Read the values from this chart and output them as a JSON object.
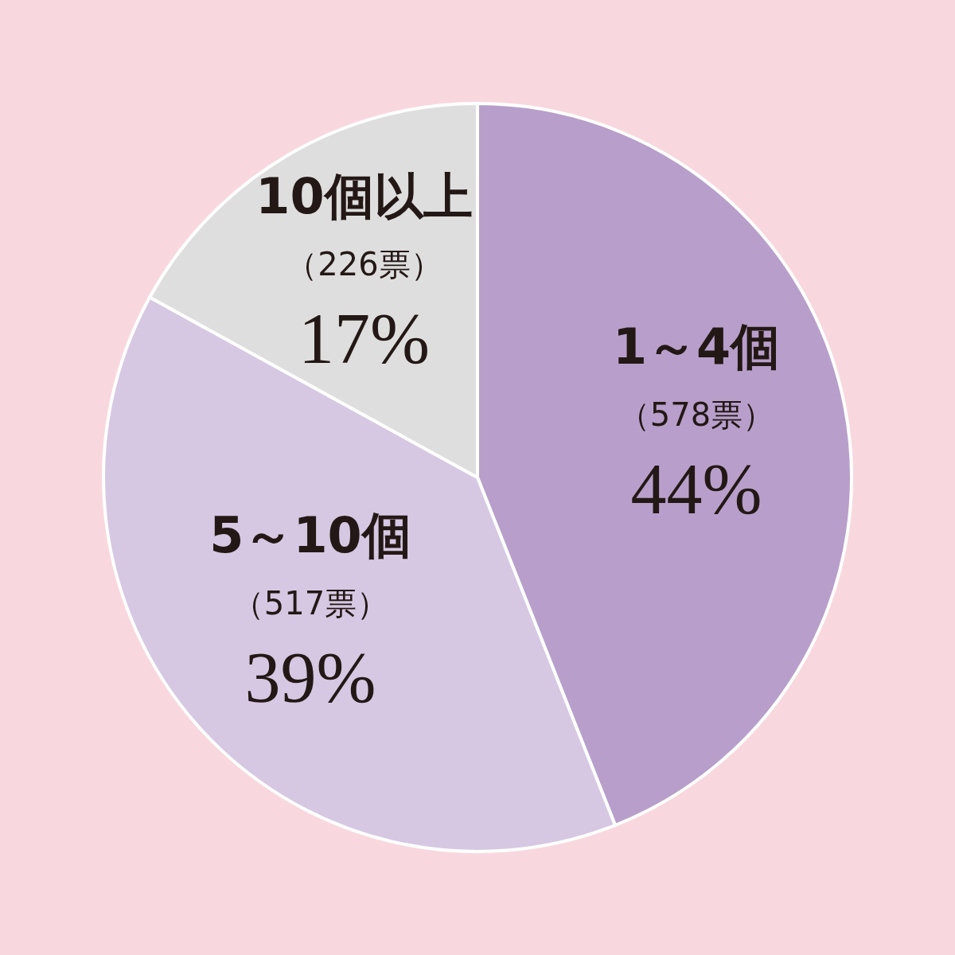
{
  "chart_data": {
    "type": "pie",
    "categories": [
      "1～4個",
      "5～10個",
      "10個以上"
    ],
    "values": [
      44,
      39,
      17
    ],
    "value_labels": [
      "（578票）\n44%",
      "（517票）\n39%",
      "（226票）\n17%"
    ],
    "colors": [
      "#b89fcb",
      "#d6c8e2",
      "#dedede"
    ]
  }
}
